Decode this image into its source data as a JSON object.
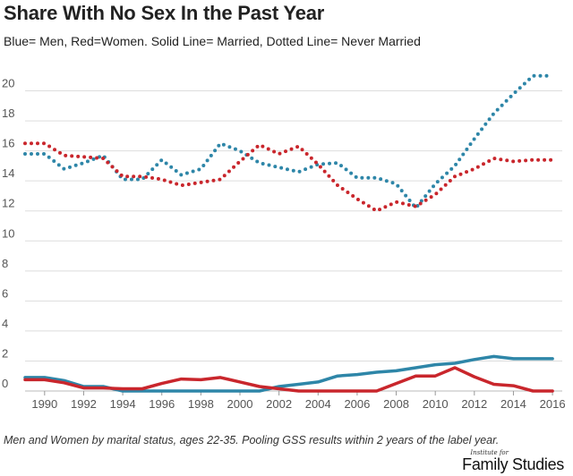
{
  "title": "Share With No Sex In the Past Year",
  "subtitle": "Blue= Men, Red=Women. Solid Line= Married, Dotted Line= Never Married",
  "note": "Men and Women by marital status, ages 22-35. Pooling GSS results within 2 years of the label year.",
  "logo": {
    "small": "Institute for",
    "big": "Family Studies"
  },
  "colors": {
    "men": "#2e86a8",
    "women": "#c9262c",
    "grid": "#dddddd",
    "axis_text": "#555555"
  },
  "chart_data": {
    "type": "line",
    "title": "Share With No Sex In the Past Year",
    "xlabel": "",
    "ylabel": "",
    "xlim": [
      1989,
      2016.5
    ],
    "ylim": [
      0,
      22
    ],
    "x_ticks": [
      1990,
      1992,
      1994,
      1996,
      1998,
      2000,
      2002,
      2004,
      2006,
      2008,
      2010,
      2012,
      2014,
      2016
    ],
    "y_ticks": [
      0,
      2,
      4,
      6,
      8,
      10,
      12,
      14,
      16,
      18,
      20
    ],
    "grid": "horizontal",
    "x": [
      1989,
      1990,
      1991,
      1992,
      1993,
      1994,
      1995,
      1996,
      1997,
      1998,
      1999,
      2000,
      2001,
      2002,
      2003,
      2004,
      2005,
      2006,
      2007,
      2008,
      2009,
      2010,
      2011,
      2012,
      2013,
      2014,
      2015,
      2016
    ],
    "series": [
      {
        "name": "Men, Never Married",
        "color": "#2e86a8",
        "style": "dotted",
        "values": [
          15.8,
          15.8,
          14.8,
          15.2,
          15.7,
          14.1,
          14.1,
          15.4,
          14.4,
          14.8,
          16.5,
          16.0,
          15.2,
          14.9,
          14.6,
          15.1,
          15.2,
          14.2,
          14.2,
          13.8,
          12.2,
          13.8,
          15.0,
          16.8,
          18.5,
          19.8,
          21.0,
          21.0
        ]
      },
      {
        "name": "Women, Never Married",
        "color": "#c9262c",
        "style": "dotted",
        "values": [
          16.5,
          16.5,
          15.7,
          15.6,
          15.5,
          14.3,
          14.3,
          14.1,
          13.7,
          13.9,
          14.1,
          15.3,
          16.4,
          15.8,
          16.3,
          15.1,
          13.7,
          12.8,
          12.0,
          12.6,
          12.3,
          13.1,
          14.3,
          14.8,
          15.5,
          15.3,
          15.4,
          15.4
        ]
      },
      {
        "name": "Men, Married",
        "color": "#2e86a8",
        "style": "solid",
        "values": [
          0.9,
          0.9,
          0.7,
          0.3,
          0.3,
          0.0,
          0.0,
          0.0,
          0.0,
          0.0,
          0.0,
          0.0,
          0.0,
          0.3,
          0.45,
          0.6,
          1.0,
          1.1,
          1.25,
          1.35,
          1.55,
          1.75,
          1.85,
          2.1,
          2.3,
          2.15,
          2.15,
          2.15
        ]
      },
      {
        "name": "Women, Married",
        "color": "#c9262c",
        "style": "solid",
        "values": [
          0.75,
          0.75,
          0.55,
          0.2,
          0.2,
          0.15,
          0.15,
          0.5,
          0.8,
          0.75,
          0.9,
          0.6,
          0.3,
          0.15,
          0.0,
          0.0,
          0.0,
          0.0,
          0.0,
          0.5,
          1.0,
          1.0,
          1.55,
          0.95,
          0.45,
          0.35,
          0.0,
          0.0
        ]
      }
    ]
  }
}
